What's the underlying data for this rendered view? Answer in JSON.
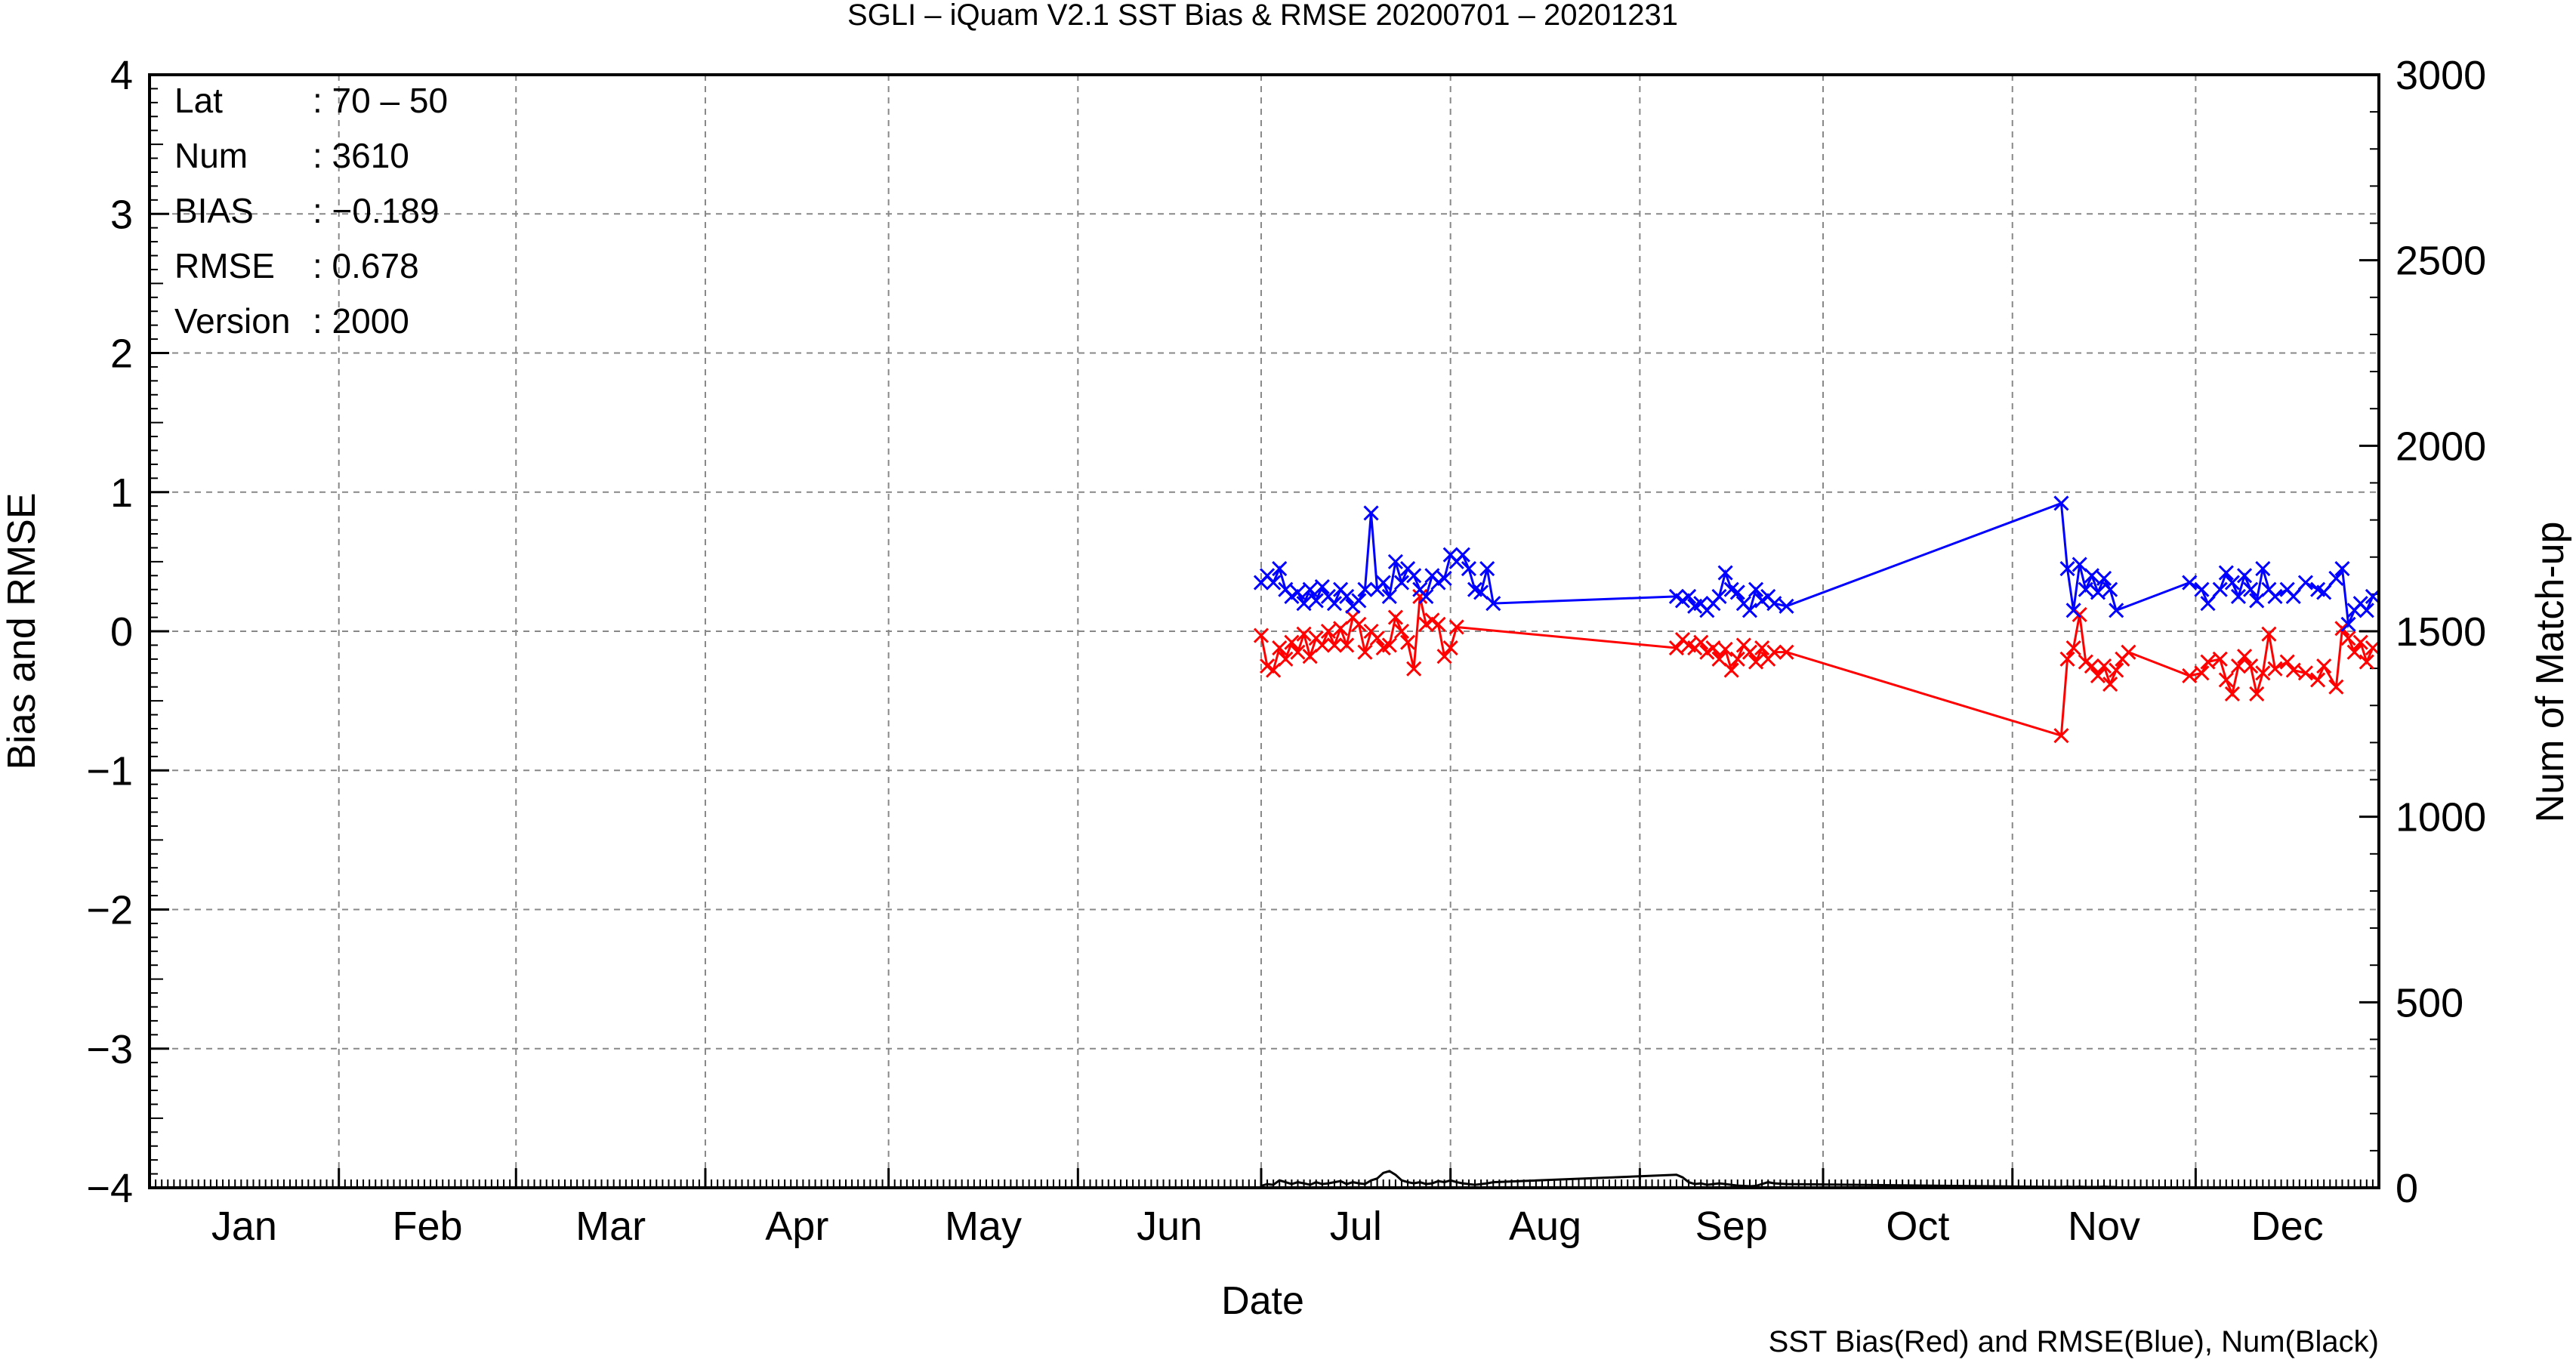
{
  "chart_data": {
    "type": "line",
    "title": "SGLI – iQuam V2.1 SST Bias & RMSE 20200701 – 20201231",
    "xlabel": "Date",
    "ylabel_left": "Bias and RMSE",
    "ylabel_right": "Num of Match-up",
    "footnote": "SST Bias(Red) and RMSE(Blue), Num(Black)",
    "x_range": [
      "2020-01-01",
      "2020-12-31"
    ],
    "month_labels": [
      "Jan",
      "Feb",
      "Mar",
      "Apr",
      "May",
      "Jun",
      "Jul",
      "Aug",
      "Sep",
      "Oct",
      "Nov",
      "Dec"
    ],
    "y_left_ticks": [
      "4",
      "3",
      "2",
      "1",
      "0",
      "−1",
      "−2",
      "−3",
      "−4"
    ],
    "y_left_range": [
      -4,
      4
    ],
    "y_right_ticks": [
      "3000",
      "2500",
      "2000",
      "1500",
      "1000",
      "500",
      "0"
    ],
    "y_right_range": [
      0,
      3000
    ],
    "grid": true,
    "stats": [
      {
        "label": "Lat",
        "value": ": 70 – 50"
      },
      {
        "label": "Num",
        "value": ": 3610"
      },
      {
        "label": "BIAS",
        "value": ": −0.189"
      },
      {
        "label": "RMSE",
        "value": ": 0.678"
      },
      {
        "label": "Version",
        "value": ": 2000"
      }
    ],
    "series": [
      {
        "name": "SST Bias",
        "color": "#ff0000",
        "marker": "x",
        "axis": "left",
        "points": [
          [
            "2020-07-01",
            -0.03
          ],
          [
            "2020-07-02",
            -0.25
          ],
          [
            "2020-07-03",
            -0.28
          ],
          [
            "2020-07-04",
            -0.12
          ],
          [
            "2020-07-05",
            -0.2
          ],
          [
            "2020-07-06",
            -0.08
          ],
          [
            "2020-07-07",
            -0.15
          ],
          [
            "2020-07-08",
            -0.02
          ],
          [
            "2020-07-09",
            -0.18
          ],
          [
            "2020-07-10",
            -0.05
          ],
          [
            "2020-07-11",
            -0.1
          ],
          [
            "2020-07-12",
            0.0
          ],
          [
            "2020-07-13",
            -0.1
          ],
          [
            "2020-07-14",
            0.02
          ],
          [
            "2020-07-15",
            -0.1
          ],
          [
            "2020-07-16",
            0.1
          ],
          [
            "2020-07-17",
            0.05
          ],
          [
            "2020-07-18",
            -0.15
          ],
          [
            "2020-07-19",
            0.0
          ],
          [
            "2020-07-20",
            -0.05
          ],
          [
            "2020-07-21",
            -0.12
          ],
          [
            "2020-07-22",
            -0.1
          ],
          [
            "2020-07-23",
            0.1
          ],
          [
            "2020-07-24",
            0.0
          ],
          [
            "2020-07-25",
            -0.08
          ],
          [
            "2020-07-26",
            -0.27
          ],
          [
            "2020-07-27",
            0.25
          ],
          [
            "2020-07-28",
            0.05
          ],
          [
            "2020-07-29",
            0.08
          ],
          [
            "2020-07-30",
            0.05
          ],
          [
            "2020-07-31",
            -0.18
          ],
          [
            "2020-08-01",
            -0.12
          ],
          [
            "2020-08-02",
            0.03
          ],
          [
            "2020-09-07",
            -0.12
          ],
          [
            "2020-09-08",
            -0.06
          ],
          [
            "2020-09-09",
            -0.1
          ],
          [
            "2020-09-10",
            -0.12
          ],
          [
            "2020-09-11",
            -0.08
          ],
          [
            "2020-09-12",
            -0.15
          ],
          [
            "2020-09-13",
            -0.12
          ],
          [
            "2020-09-14",
            -0.2
          ],
          [
            "2020-09-15",
            -0.13
          ],
          [
            "2020-09-16",
            -0.28
          ],
          [
            "2020-09-17",
            -0.2
          ],
          [
            "2020-09-18",
            -0.1
          ],
          [
            "2020-09-19",
            -0.15
          ],
          [
            "2020-09-20",
            -0.22
          ],
          [
            "2020-09-21",
            -0.12
          ],
          [
            "2020-09-22",
            -0.2
          ],
          [
            "2020-09-23",
            -0.15
          ],
          [
            "2020-09-25",
            -0.15
          ],
          [
            "2020-11-09",
            -0.75
          ],
          [
            "2020-11-10",
            -0.2
          ],
          [
            "2020-11-11",
            -0.12
          ],
          [
            "2020-11-12",
            0.12
          ],
          [
            "2020-11-13",
            -0.22
          ],
          [
            "2020-11-14",
            -0.25
          ],
          [
            "2020-11-15",
            -0.32
          ],
          [
            "2020-11-16",
            -0.25
          ],
          [
            "2020-11-17",
            -0.38
          ],
          [
            "2020-11-18",
            -0.28
          ],
          [
            "2020-11-19",
            -0.2
          ],
          [
            "2020-11-20",
            -0.15
          ],
          [
            "2020-11-30",
            -0.32
          ],
          [
            "2020-12-02",
            -0.3
          ],
          [
            "2020-12-03",
            -0.22
          ],
          [
            "2020-12-05",
            -0.2
          ],
          [
            "2020-12-06",
            -0.35
          ],
          [
            "2020-12-07",
            -0.45
          ],
          [
            "2020-12-08",
            -0.25
          ],
          [
            "2020-12-09",
            -0.18
          ],
          [
            "2020-12-10",
            -0.25
          ],
          [
            "2020-12-11",
            -0.45
          ],
          [
            "2020-12-12",
            -0.3
          ],
          [
            "2020-12-13",
            -0.02
          ],
          [
            "2020-12-14",
            -0.27
          ],
          [
            "2020-12-16",
            -0.22
          ],
          [
            "2020-12-17",
            -0.28
          ],
          [
            "2020-12-19",
            -0.3
          ],
          [
            "2020-12-21",
            -0.35
          ],
          [
            "2020-12-22",
            -0.25
          ],
          [
            "2020-12-24",
            -0.4
          ],
          [
            "2020-12-25",
            0.02
          ],
          [
            "2020-12-26",
            -0.05
          ],
          [
            "2020-12-27",
            -0.15
          ],
          [
            "2020-12-28",
            -0.08
          ],
          [
            "2020-12-29",
            -0.22
          ],
          [
            "2020-12-30",
            -0.12
          ]
        ]
      },
      {
        "name": "RMSE",
        "color": "#0000ff",
        "marker": "x",
        "axis": "left",
        "points": [
          [
            "2020-07-01",
            0.35
          ],
          [
            "2020-07-02",
            0.4
          ],
          [
            "2020-07-03",
            0.35
          ],
          [
            "2020-07-04",
            0.45
          ],
          [
            "2020-07-05",
            0.3
          ],
          [
            "2020-07-06",
            0.25
          ],
          [
            "2020-07-07",
            0.28
          ],
          [
            "2020-07-08",
            0.2
          ],
          [
            "2020-07-09",
            0.3
          ],
          [
            "2020-07-10",
            0.22
          ],
          [
            "2020-07-11",
            0.32
          ],
          [
            "2020-07-12",
            0.25
          ],
          [
            "2020-07-13",
            0.2
          ],
          [
            "2020-07-14",
            0.3
          ],
          [
            "2020-07-15",
            0.25
          ],
          [
            "2020-07-16",
            0.18
          ],
          [
            "2020-07-17",
            0.22
          ],
          [
            "2020-07-18",
            0.3
          ],
          [
            "2020-07-19",
            0.85
          ],
          [
            "2020-07-20",
            0.3
          ],
          [
            "2020-07-21",
            0.35
          ],
          [
            "2020-07-22",
            0.25
          ],
          [
            "2020-07-23",
            0.5
          ],
          [
            "2020-07-24",
            0.35
          ],
          [
            "2020-07-25",
            0.45
          ],
          [
            "2020-07-26",
            0.4
          ],
          [
            "2020-07-27",
            0.3
          ],
          [
            "2020-07-28",
            0.25
          ],
          [
            "2020-07-29",
            0.4
          ],
          [
            "2020-07-30",
            0.35
          ],
          [
            "2020-07-31",
            0.38
          ],
          [
            "2020-08-01",
            0.55
          ],
          [
            "2020-08-02",
            0.5
          ],
          [
            "2020-08-03",
            0.55
          ],
          [
            "2020-08-04",
            0.45
          ],
          [
            "2020-08-05",
            0.3
          ],
          [
            "2020-08-06",
            0.28
          ],
          [
            "2020-08-07",
            0.45
          ],
          [
            "2020-08-08",
            0.2
          ],
          [
            "2020-09-07",
            0.25
          ],
          [
            "2020-09-08",
            0.22
          ],
          [
            "2020-09-09",
            0.25
          ],
          [
            "2020-09-10",
            0.18
          ],
          [
            "2020-09-11",
            0.2
          ],
          [
            "2020-09-12",
            0.15
          ],
          [
            "2020-09-13",
            0.2
          ],
          [
            "2020-09-14",
            0.25
          ],
          [
            "2020-09-15",
            0.42
          ],
          [
            "2020-09-16",
            0.3
          ],
          [
            "2020-09-17",
            0.28
          ],
          [
            "2020-09-18",
            0.2
          ],
          [
            "2020-09-19",
            0.15
          ],
          [
            "2020-09-20",
            0.3
          ],
          [
            "2020-09-21",
            0.22
          ],
          [
            "2020-09-22",
            0.25
          ],
          [
            "2020-09-23",
            0.2
          ],
          [
            "2020-09-25",
            0.18
          ],
          [
            "2020-11-09",
            0.92
          ],
          [
            "2020-11-10",
            0.45
          ],
          [
            "2020-11-11",
            0.15
          ],
          [
            "2020-11-12",
            0.48
          ],
          [
            "2020-11-13",
            0.3
          ],
          [
            "2020-11-14",
            0.4
          ],
          [
            "2020-11-15",
            0.28
          ],
          [
            "2020-11-16",
            0.38
          ],
          [
            "2020-11-17",
            0.3
          ],
          [
            "2020-11-18",
            0.15
          ],
          [
            "2020-11-30",
            0.35
          ],
          [
            "2020-12-02",
            0.3
          ],
          [
            "2020-12-03",
            0.2
          ],
          [
            "2020-12-05",
            0.3
          ],
          [
            "2020-12-06",
            0.42
          ],
          [
            "2020-12-07",
            0.35
          ],
          [
            "2020-12-08",
            0.25
          ],
          [
            "2020-12-09",
            0.4
          ],
          [
            "2020-12-10",
            0.3
          ],
          [
            "2020-12-11",
            0.22
          ],
          [
            "2020-12-12",
            0.45
          ],
          [
            "2020-12-13",
            0.3
          ],
          [
            "2020-12-14",
            0.25
          ],
          [
            "2020-12-16",
            0.3
          ],
          [
            "2020-12-17",
            0.25
          ],
          [
            "2020-12-19",
            0.35
          ],
          [
            "2020-12-21",
            0.3
          ],
          [
            "2020-12-22",
            0.28
          ],
          [
            "2020-12-24",
            0.38
          ],
          [
            "2020-12-25",
            0.45
          ],
          [
            "2020-12-26",
            0.05
          ],
          [
            "2020-12-27",
            0.15
          ],
          [
            "2020-12-28",
            0.2
          ],
          [
            "2020-12-29",
            0.15
          ],
          [
            "2020-12-30",
            0.25
          ]
        ]
      },
      {
        "name": "Num",
        "color": "#000000",
        "marker": "none",
        "axis": "right",
        "points": [
          [
            "2020-07-01",
            5
          ],
          [
            "2020-07-02",
            10
          ],
          [
            "2020-07-03",
            8
          ],
          [
            "2020-07-04",
            20
          ],
          [
            "2020-07-05",
            15
          ],
          [
            "2020-07-06",
            10
          ],
          [
            "2020-07-07",
            15
          ],
          [
            "2020-07-08",
            12
          ],
          [
            "2020-07-09",
            8
          ],
          [
            "2020-07-10",
            15
          ],
          [
            "2020-07-11",
            10
          ],
          [
            "2020-07-12",
            12
          ],
          [
            "2020-07-13",
            15
          ],
          [
            "2020-07-14",
            18
          ],
          [
            "2020-07-15",
            10
          ],
          [
            "2020-07-16",
            15
          ],
          [
            "2020-07-17",
            12
          ],
          [
            "2020-07-18",
            10
          ],
          [
            "2020-07-19",
            20
          ],
          [
            "2020-07-20",
            25
          ],
          [
            "2020-07-21",
            40
          ],
          [
            "2020-07-22",
            45
          ],
          [
            "2020-07-23",
            35
          ],
          [
            "2020-07-24",
            20
          ],
          [
            "2020-07-25",
            15
          ],
          [
            "2020-07-26",
            12
          ],
          [
            "2020-07-27",
            15
          ],
          [
            "2020-07-28",
            10
          ],
          [
            "2020-07-29",
            12
          ],
          [
            "2020-07-30",
            18
          ],
          [
            "2020-07-31",
            15
          ],
          [
            "2020-08-01",
            20
          ],
          [
            "2020-08-02",
            15
          ],
          [
            "2020-08-03",
            12
          ],
          [
            "2020-08-04",
            10
          ],
          [
            "2020-08-05",
            8
          ],
          [
            "2020-08-06",
            10
          ],
          [
            "2020-08-07",
            12
          ],
          [
            "2020-08-08",
            15
          ],
          [
            "2020-09-07",
            35
          ],
          [
            "2020-09-08",
            28
          ],
          [
            "2020-09-09",
            15
          ],
          [
            "2020-09-10",
            10
          ],
          [
            "2020-09-11",
            12
          ],
          [
            "2020-09-12",
            8
          ],
          [
            "2020-09-13",
            10
          ],
          [
            "2020-09-14",
            12
          ],
          [
            "2020-09-15",
            10
          ],
          [
            "2020-09-16",
            8
          ],
          [
            "2020-09-17",
            6
          ],
          [
            "2020-09-18",
            5
          ],
          [
            "2020-09-19",
            4
          ],
          [
            "2020-09-20",
            5
          ],
          [
            "2020-09-21",
            10
          ],
          [
            "2020-09-22",
            15
          ],
          [
            "2020-09-23",
            12
          ],
          [
            "2020-09-25",
            10
          ],
          [
            "2020-11-09",
            2
          ],
          [
            "2020-11-10",
            3
          ],
          [
            "2020-11-11",
            2
          ],
          [
            "2020-11-12",
            3
          ],
          [
            "2020-11-13",
            2
          ],
          [
            "2020-11-14",
            2
          ],
          [
            "2020-11-15",
            2
          ],
          [
            "2020-11-16",
            3
          ],
          [
            "2020-11-17",
            2
          ],
          [
            "2020-11-18",
            2
          ]
        ]
      }
    ]
  }
}
